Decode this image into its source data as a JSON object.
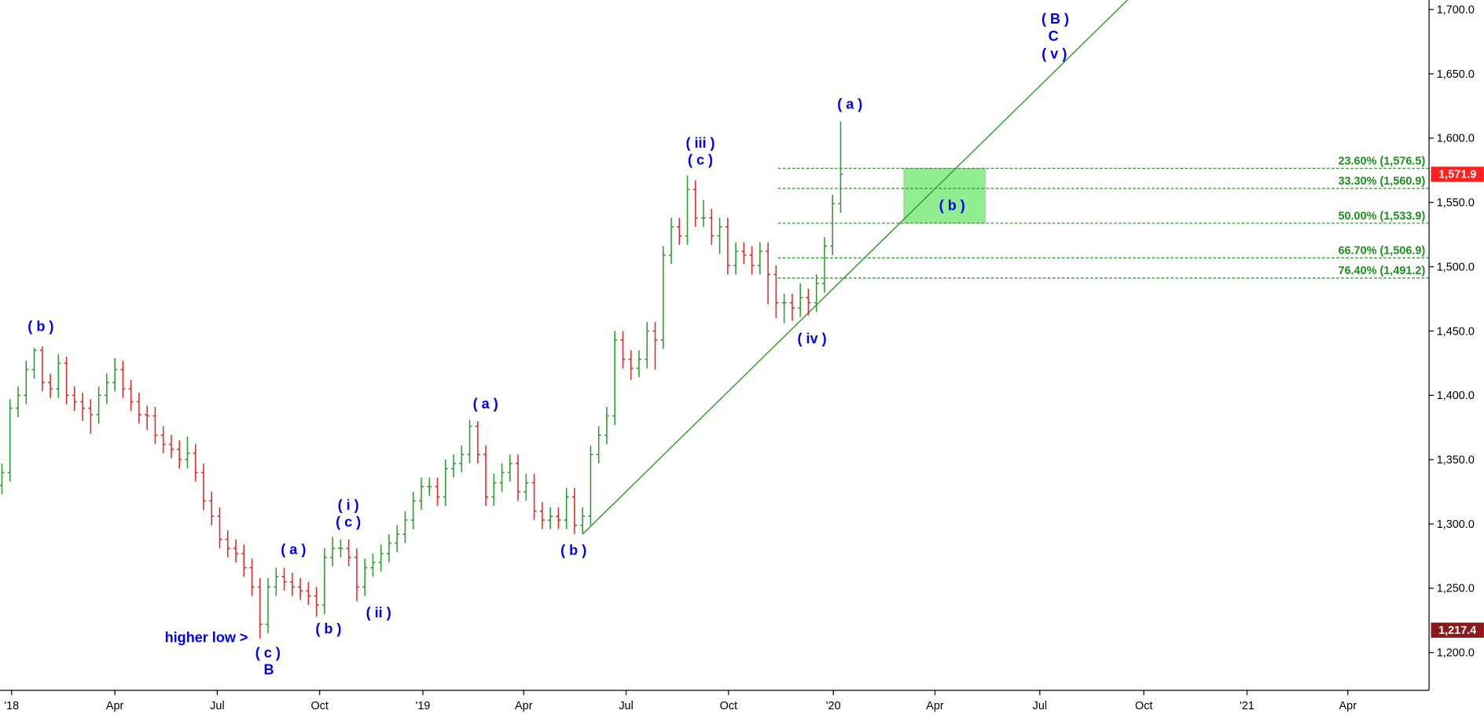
{
  "chart_data": {
    "type": "ohlc",
    "open": [
      1330,
      1340,
      1390,
      1400,
      1420,
      1435,
      1410,
      1405,
      1425,
      1400,
      1395,
      1390,
      1385,
      1400,
      1410,
      1420,
      1405,
      1395,
      1385,
      1384,
      1369,
      1362,
      1358,
      1350,
      1355,
      1340,
      1318,
      1306,
      1288,
      1281,
      1277,
      1266,
      1251,
      1222,
      1251,
      1259,
      1255,
      1251,
      1248,
      1244,
      1237,
      1274,
      1281,
      1281,
      1274,
      1251,
      1266,
      1270,
      1277,
      1285,
      1292,
      1303,
      1318,
      1329,
      1329,
      1321,
      1343,
      1347,
      1354,
      1376,
      1354,
      1321,
      1332,
      1340,
      1347,
      1325,
      1332,
      1310,
      1303,
      1306,
      1303,
      1321,
      1299,
      1306,
      1354,
      1369,
      1384,
      1443,
      1428,
      1421,
      1428,
      1450,
      1443,
      1509,
      1531,
      1524,
      1560,
      1538,
      1538,
      1524,
      1531,
      1501,
      1512,
      1509,
      1501,
      1512,
      1494,
      1472,
      1472,
      1468,
      1476,
      1472,
      1487,
      1516,
      1549
    ],
    "high": [
      1347,
      1397,
      1407,
      1427,
      1437,
      1438,
      1417,
      1432,
      1430,
      1407,
      1402,
      1397,
      1407,
      1417,
      1429,
      1427,
      1412,
      1402,
      1392,
      1391,
      1376,
      1369,
      1365,
      1368,
      1362,
      1347,
      1325,
      1313,
      1295,
      1288,
      1284,
      1273,
      1258,
      1258,
      1266,
      1266,
      1262,
      1258,
      1255,
      1251,
      1281,
      1290,
      1288,
      1288,
      1281,
      1273,
      1277,
      1284,
      1292,
      1299,
      1310,
      1325,
      1336,
      1336,
      1336,
      1350,
      1354,
      1361,
      1381,
      1380,
      1361,
      1339,
      1347,
      1354,
      1354,
      1339,
      1339,
      1317,
      1313,
      1313,
      1328,
      1328,
      1313,
      1361,
      1376,
      1391,
      1450,
      1450,
      1435,
      1435,
      1457,
      1457,
      1516,
      1538,
      1538,
      1571,
      1567,
      1552,
      1545,
      1538,
      1538,
      1519,
      1519,
      1516,
      1519,
      1519,
      1501,
      1479,
      1479,
      1487,
      1483,
      1494,
      1523,
      1556,
      1613
    ],
    "low": [
      1323,
      1333,
      1383,
      1393,
      1413,
      1403,
      1398,
      1398,
      1393,
      1388,
      1380,
      1370,
      1378,
      1393,
      1403,
      1398,
      1388,
      1378,
      1373,
      1362,
      1355,
      1351,
      1343,
      1343,
      1333,
      1311,
      1299,
      1281,
      1274,
      1270,
      1259,
      1244,
      1211,
      1215,
      1244,
      1248,
      1244,
      1241,
      1237,
      1228,
      1230,
      1267,
      1274,
      1267,
      1240,
      1244,
      1259,
      1263,
      1270,
      1278,
      1285,
      1296,
      1311,
      1322,
      1314,
      1314,
      1336,
      1340,
      1347,
      1347,
      1314,
      1314,
      1325,
      1333,
      1318,
      1318,
      1303,
      1296,
      1296,
      1296,
      1296,
      1292,
      1292,
      1299,
      1347,
      1362,
      1377,
      1421,
      1412,
      1414,
      1421,
      1420,
      1436,
      1502,
      1517,
      1517,
      1531,
      1531,
      1517,
      1510,
      1494,
      1494,
      1502,
      1494,
      1494,
      1471,
      1460,
      1456,
      1458,
      1461,
      1462,
      1465,
      1480,
      1509,
      1542
    ],
    "close": [
      1340,
      1390,
      1400,
      1420,
      1435,
      1410,
      1405,
      1425,
      1400,
      1395,
      1390,
      1385,
      1400,
      1410,
      1420,
      1405,
      1395,
      1385,
      1384,
      1369,
      1362,
      1358,
      1350,
      1355,
      1340,
      1318,
      1306,
      1288,
      1281,
      1277,
      1266,
      1251,
      1222,
      1251,
      1259,
      1255,
      1251,
      1248,
      1244,
      1237,
      1274,
      1281,
      1281,
      1274,
      1251,
      1266,
      1270,
      1277,
      1285,
      1292,
      1303,
      1318,
      1329,
      1329,
      1321,
      1343,
      1347,
      1354,
      1376,
      1354,
      1321,
      1332,
      1340,
      1347,
      1325,
      1332,
      1310,
      1303,
      1306,
      1303,
      1321,
      1299,
      1306,
      1354,
      1369,
      1384,
      1443,
      1428,
      1421,
      1428,
      1450,
      1443,
      1509,
      1531,
      1524,
      1560,
      1538,
      1538,
      1524,
      1531,
      1501,
      1512,
      1509,
      1501,
      1512,
      1494,
      1472,
      1472,
      1468,
      1476,
      1472,
      1487,
      1516,
      1549,
      1571.9
    ],
    "up_color": "#2e9e2e",
    "down_color": "#e02c2c",
    "xlim": [
      -0.235,
      176.97
    ],
    "xticks": [
      {
        "value": 1.2,
        "label": "'18"
      },
      {
        "value": 14.0,
        "label": "Apr"
      },
      {
        "value": 26.7,
        "label": "Jul"
      },
      {
        "value": 39.4,
        "label": "Oct"
      },
      {
        "value": 52.2,
        "label": "'19"
      },
      {
        "value": 64.7,
        "label": "Apr"
      },
      {
        "value": 77.4,
        "label": "Jul"
      },
      {
        "value": 90.1,
        "label": "Oct"
      },
      {
        "value": 103.1,
        "label": "'20"
      },
      {
        "value": 115.7,
        "label": "Apr"
      },
      {
        "value": 128.7,
        "label": "Jul"
      },
      {
        "value": 141.6,
        "label": "Oct"
      },
      {
        "value": 154.4,
        "label": "'21"
      },
      {
        "value": 166.9,
        "label": "Apr"
      }
    ],
    "ylim": [
      1170.6,
      1707.4
    ],
    "yticks": [
      {
        "value": 1200,
        "label": "1,200.0"
      },
      {
        "value": 1250,
        "label": "1,250.0"
      },
      {
        "value": 1300,
        "label": "1,300.0"
      },
      {
        "value": 1350,
        "label": "1,350.0"
      },
      {
        "value": 1400,
        "label": "1,400.0"
      },
      {
        "value": 1450,
        "label": "1,450.0"
      },
      {
        "value": 1500,
        "label": "1,500.0"
      },
      {
        "value": 1550,
        "label": "1,550.0"
      },
      {
        "value": 1600,
        "label": "1,600.0"
      },
      {
        "value": 1650,
        "label": "1,650.0"
      },
      {
        "value": 1700,
        "label": "1,700.0"
      }
    ],
    "fib_levels": [
      {
        "value": 1576.5,
        "label": "23.60% (1,576.5)"
      },
      {
        "value": 1560.9,
        "label": "33.30% (1,560.9)"
      },
      {
        "value": 1533.9,
        "label": "50.00% (1,533.9)"
      },
      {
        "value": 1506.9,
        "label": "66.70% (1,506.9)"
      },
      {
        "value": 1491.2,
        "label": "76.40% (1,491.2)"
      }
    ],
    "fib_color": "#1f8f1f",
    "zone_color": "#90ee90",
    "trendline": {
      "x": [
        72,
        140
      ],
      "y": [
        1292,
        1710
      ],
      "color": "#2ca02c"
    },
    "annotation_color": "#0000ee",
    "annotations": [
      "( b )",
      "( a )",
      "( i )",
      "( c )",
      "( ii )",
      "( b )",
      "higher low >",
      "( c )",
      "B",
      "( a )",
      "( b )",
      "( iii )",
      "( c )",
      "( iv )",
      "( a )",
      "( b )",
      "( B )",
      "C",
      "( v )"
    ],
    "price_tags": [
      {
        "value": 1571.9,
        "label": "1,571.9",
        "color": "#ff2020"
      },
      {
        "value": 1217.4,
        "label": "1,217.4",
        "color": "#8b1a1a"
      }
    ]
  }
}
